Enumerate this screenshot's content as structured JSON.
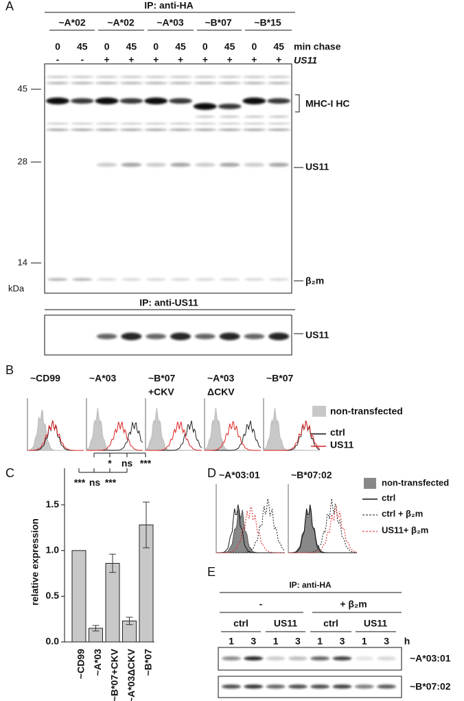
{
  "panel_labels": [
    "A",
    "B",
    "C",
    "D",
    "E"
  ],
  "panel_a": {
    "header": "IP: anti-HA",
    "groups": [
      "~A*02",
      "~A*02",
      "~A*03",
      "~B*07",
      "~B*15"
    ],
    "chase": [
      "0",
      "45",
      "0",
      "45",
      "0",
      "45",
      "0",
      "45",
      "0",
      "45"
    ],
    "us11": [
      "-",
      "-",
      "+",
      "+",
      "+",
      "+",
      "+",
      "+",
      "+",
      "+"
    ],
    "chase_label": "min chase",
    "us11_label": "US11",
    "markers": [
      "45",
      "28",
      "14"
    ],
    "unit": "kDa",
    "bands": [
      "MHC-I HC",
      "US11",
      "β₂m"
    ],
    "gel2_header": "IP: anti-US11",
    "gel2_band": "US11"
  },
  "panel_b": {
    "titles": [
      [
        "~CD99"
      ],
      [
        "~A*03"
      ],
      [
        "~B*07",
        "+CKV"
      ],
      [
        "~A*03",
        "ΔCKV"
      ],
      [
        "~B*07"
      ]
    ],
    "legend": [
      "non-transfected",
      "ctrl",
      "US11"
    ]
  },
  "chart_data": {
    "type": "bar",
    "ylabel": "relative expression",
    "categories": [
      "~CD99",
      "~A*03",
      "~B*07+CKV",
      "~A*03ΔCKV",
      "~B*07"
    ],
    "values": [
      1.0,
      0.15,
      0.86,
      0.23,
      1.28
    ],
    "errors": [
      null,
      0.03,
      0.1,
      0.04,
      0.25
    ],
    "color": "#c8c8c8",
    "ylim": [
      0,
      1.9
    ],
    "yticks": [
      {
        "value": 0,
        "label": "0.0"
      },
      0.5,
      {
        "value": 1,
        "label": "1.0"
      },
      1.5
    ],
    "significance_upper": [
      "*",
      "ns",
      "***"
    ],
    "significance_lower": [
      "***",
      "ns",
      "***"
    ]
  },
  "panel_d": {
    "titles": [
      "~A*03:01",
      "~B*07:02"
    ],
    "legend": [
      "non-transfected",
      "ctrl",
      "ctrl + β₂m",
      "US11+ β₂m"
    ]
  },
  "panel_e": {
    "header": "IP: anti-HA",
    "conditions": [
      "-",
      "+ β₂m"
    ],
    "subgroups": [
      "ctrl",
      "US11",
      "ctrl",
      "US11"
    ],
    "lanes": [
      "1",
      "3",
      "1",
      "3",
      "1",
      "3",
      "1",
      "3"
    ],
    "unit": "h",
    "rows": [
      "~A*03:01",
      "~B*07:02"
    ]
  }
}
